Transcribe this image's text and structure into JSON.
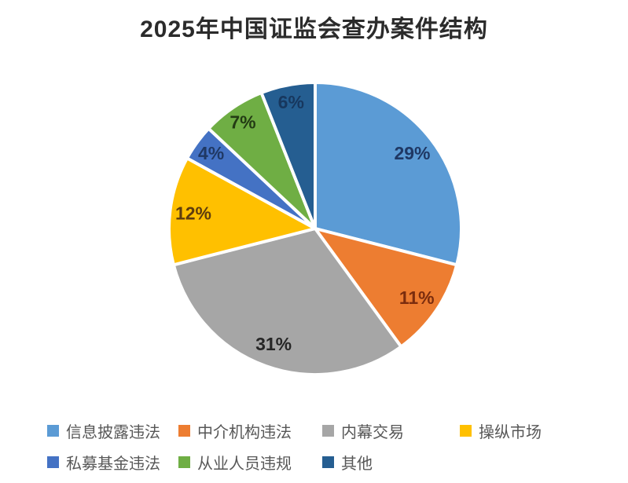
{
  "title": "2025年中国证监会查办案件结构",
  "chart_data": {
    "type": "pie",
    "title": "2025年中国证监会查办案件结构",
    "start_angle_deg": 0,
    "direction": "clockwise",
    "legend_position": "bottom",
    "slice_separator_color": "#FFFFFF",
    "series": [
      {
        "label": "信息披露违法",
        "value": 29,
        "data_label": "29%",
        "color": "#5B9BD5",
        "label_color": "#1F3864"
      },
      {
        "label": "中介机构违法",
        "value": 11,
        "data_label": "11%",
        "color": "#ED7D31",
        "label_color": "#7B2D0E"
      },
      {
        "label": "内幕交易",
        "value": 31,
        "data_label": "31%",
        "color": "#A6A6A6",
        "label_color": "#262626"
      },
      {
        "label": "操纵市场",
        "value": 12,
        "data_label": "12%",
        "color": "#FFC000",
        "label_color": "#5E3D0E"
      },
      {
        "label": "私募基金违法",
        "value": 4,
        "data_label": "4%",
        "color": "#4472C4",
        "label_color": "#1F3864"
      },
      {
        "label": "从业人员违规",
        "value": 7,
        "data_label": "7%",
        "color": "#6FAE44",
        "label_color": "#233B14"
      },
      {
        "label": "其他",
        "value": 6,
        "data_label": "6%",
        "color": "#255E91",
        "label_color": "#17375E"
      }
    ],
    "legend_rows": [
      4,
      3
    ]
  }
}
